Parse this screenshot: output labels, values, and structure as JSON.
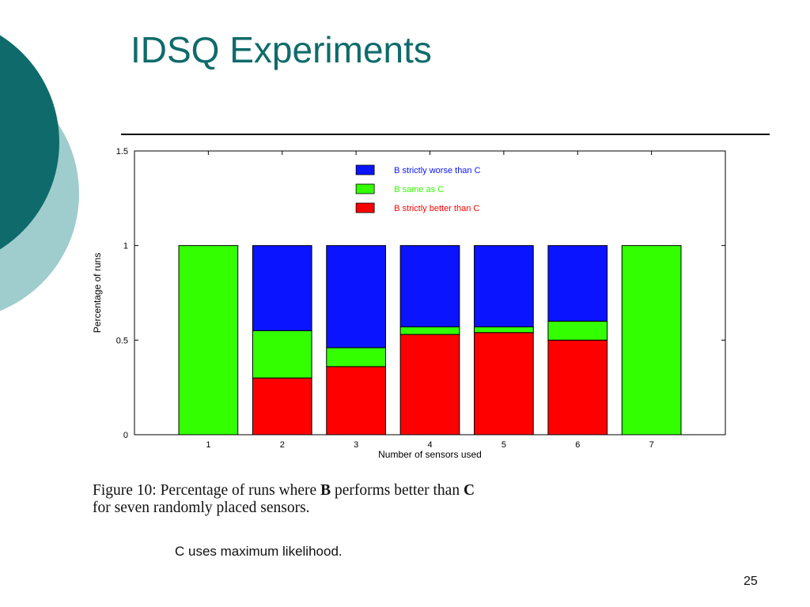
{
  "slide": {
    "title": "IDSQ Experiments",
    "caption_prefix": "Figure 10:  Percentage of runs where ",
    "caption_b": "B",
    "caption_mid": " performs better than ",
    "caption_c": "C",
    "caption_line2": "for seven randomly placed sensors.",
    "note": "C uses maximum likelihood.",
    "page_number": "25"
  },
  "colors": {
    "title": "#0f6b6b",
    "decor_dark": "#0f6b6b",
    "decor_light": "#9fcccc"
  },
  "chart_data": {
    "type": "bar",
    "stacked": true,
    "xlabel": "Number of sensors used",
    "ylabel": "Percentage of runs",
    "categories": [
      "1",
      "2",
      "3",
      "4",
      "5",
      "6",
      "7"
    ],
    "ylim": [
      0,
      1.5
    ],
    "yticks": [
      "0",
      "0.5",
      "1",
      "1.5"
    ],
    "legend_position": "top-right",
    "series": [
      {
        "name": "B strictly better than C",
        "color": "#ff0000",
        "values": [
          0,
          0.3,
          0.36,
          0.53,
          0.54,
          0.5,
          0
        ]
      },
      {
        "name": "B same as C",
        "color": "#33ff00",
        "values": [
          1.0,
          0.25,
          0.1,
          0.04,
          0.03,
          0.1,
          1.0
        ]
      },
      {
        "name": "B strictly worse than C",
        "color": "#0a14ff",
        "values": [
          0,
          0.45,
          0.54,
          0.43,
          0.43,
          0.4,
          0
        ]
      }
    ],
    "legend_order": [
      "B strictly worse than C",
      "B same as C",
      "B strictly better than C"
    ]
  }
}
